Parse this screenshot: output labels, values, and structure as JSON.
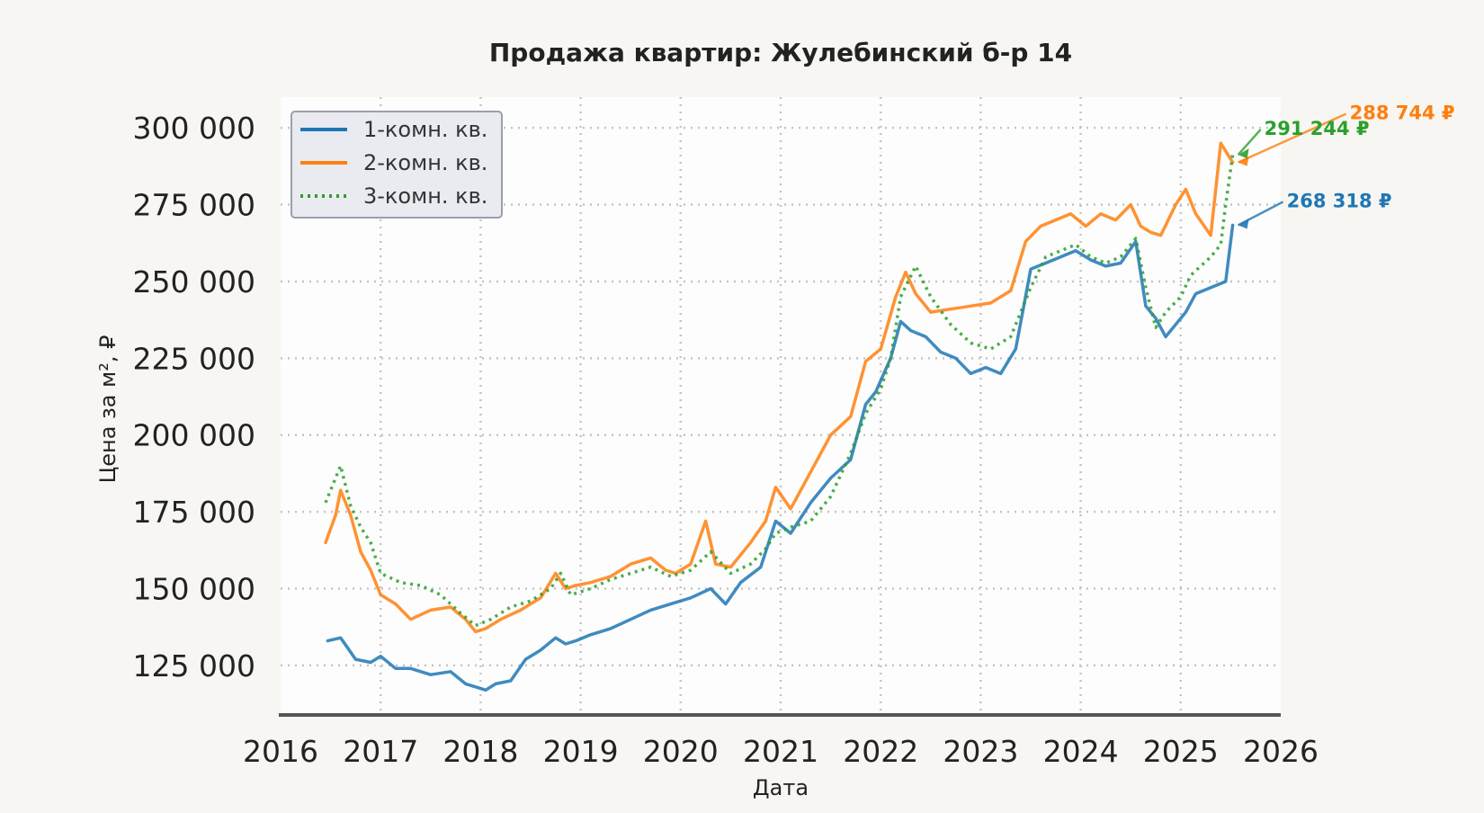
{
  "chart_data": {
    "type": "line",
    "title": "Продажа квартир: Жулебинский б-р 14",
    "xlabel": "Дата",
    "ylabel": "Цена за м², ₽",
    "xlim": [
      2016.0,
      2026.0
    ],
    "ylim": [
      108000,
      310000
    ],
    "x_ticks": [
      "2016",
      "2017",
      "2018",
      "2019",
      "2020",
      "2021",
      "2022",
      "2023",
      "2024",
      "2025",
      "2026"
    ],
    "y_ticks": [
      "125 000",
      "150 000",
      "175 000",
      "200 000",
      "225 000",
      "250 000",
      "275 000",
      "300 000"
    ],
    "grid": true,
    "legend_position": "top-left",
    "series": [
      {
        "name": "1-комн. кв.",
        "color": "#1f77b4",
        "style": "solid",
        "x": [
          2016.47,
          2016.6,
          2016.75,
          2016.9,
          2017.0,
          2017.15,
          2017.3,
          2017.5,
          2017.7,
          2017.85,
          2017.95,
          2018.05,
          2018.15,
          2018.3,
          2018.45,
          2018.6,
          2018.75,
          2018.85,
          2018.95,
          2019.1,
          2019.3,
          2019.5,
          2019.7,
          2019.9,
          2020.1,
          2020.3,
          2020.45,
          2020.6,
          2020.8,
          2020.95,
          2021.1,
          2021.3,
          2021.5,
          2021.7,
          2021.85,
          2021.95,
          2022.1,
          2022.2,
          2022.3,
          2022.45,
          2022.6,
          2022.75,
          2022.9,
          2023.05,
          2023.2,
          2023.35,
          2023.5,
          2023.65,
          2023.8,
          2023.95,
          2024.1,
          2024.25,
          2024.4,
          2024.55,
          2024.65,
          2024.75,
          2024.85,
          2024.95,
          2025.05,
          2025.15,
          2025.3,
          2025.45,
          2025.52
        ],
        "y": [
          133000,
          134000,
          127000,
          126000,
          128000,
          124000,
          124000,
          122000,
          123000,
          119000,
          118000,
          117000,
          119000,
          120000,
          127000,
          130000,
          134000,
          132000,
          133000,
          135000,
          137000,
          140000,
          143000,
          145000,
          147000,
          150000,
          145000,
          152000,
          157000,
          172000,
          168000,
          178000,
          186000,
          192000,
          210000,
          214000,
          225000,
          237000,
          234000,
          232000,
          227000,
          225000,
          220000,
          222000,
          220000,
          228000,
          254000,
          256000,
          258000,
          260000,
          257000,
          255000,
          256000,
          263000,
          242000,
          238000,
          232000,
          236000,
          240000,
          246000,
          248000,
          250000,
          268318
        ]
      },
      {
        "name": "2-комн. кв.",
        "color": "#ff7f0e",
        "style": "solid",
        "x": [
          2016.45,
          2016.55,
          2016.6,
          2016.7,
          2016.8,
          2016.9,
          2017.0,
          2017.15,
          2017.3,
          2017.5,
          2017.7,
          2017.85,
          2017.95,
          2018.05,
          2018.2,
          2018.4,
          2018.6,
          2018.75,
          2018.85,
          2018.95,
          2019.1,
          2019.3,
          2019.5,
          2019.7,
          2019.85,
          2019.95,
          2020.1,
          2020.25,
          2020.35,
          2020.5,
          2020.7,
          2020.85,
          2020.95,
          2021.1,
          2021.3,
          2021.5,
          2021.7,
          2021.85,
          2022.0,
          2022.15,
          2022.25,
          2022.35,
          2022.5,
          2022.7,
          2022.9,
          2023.1,
          2023.3,
          2023.45,
          2023.6,
          2023.75,
          2023.9,
          2024.05,
          2024.2,
          2024.35,
          2024.5,
          2024.6,
          2024.7,
          2024.8,
          2024.95,
          2025.05,
          2025.15,
          2025.3,
          2025.4,
          2025.52
        ],
        "y": [
          165000,
          174000,
          182000,
          174000,
          162000,
          156000,
          148000,
          145000,
          140000,
          143000,
          144000,
          140000,
          136000,
          137000,
          140000,
          143000,
          147000,
          155000,
          150000,
          151000,
          152000,
          154000,
          158000,
          160000,
          156000,
          155000,
          158000,
          172000,
          158000,
          157000,
          165000,
          172000,
          183000,
          176000,
          188000,
          200000,
          206000,
          224000,
          228000,
          245000,
          253000,
          246000,
          240000,
          241000,
          242000,
          243000,
          247000,
          263000,
          268000,
          270000,
          272000,
          268000,
          272000,
          270000,
          275000,
          268000,
          266000,
          265000,
          275000,
          280000,
          272000,
          265000,
          295000,
          288744
        ]
      },
      {
        "name": "3-комн. кв.",
        "color": "#2ca02c",
        "style": "dotted",
        "x": [
          2016.45,
          2016.6,
          2016.7,
          2016.8,
          2016.9,
          2017.0,
          2017.2,
          2017.4,
          2017.6,
          2017.8,
          2017.95,
          2018.1,
          2018.3,
          2018.5,
          2018.7,
          2018.8,
          2018.9,
          2019.1,
          2019.3,
          2019.5,
          2019.7,
          2019.9,
          2020.1,
          2020.3,
          2020.5,
          2020.7,
          2020.85,
          2020.95,
          2021.1,
          2021.3,
          2021.5,
          2021.7,
          2021.85,
          2022.0,
          2022.1,
          2022.2,
          2022.35,
          2022.5,
          2022.7,
          2022.9,
          2023.1,
          2023.3,
          2023.5,
          2023.65,
          2023.8,
          2023.95,
          2024.1,
          2024.25,
          2024.4,
          2024.55,
          2024.65,
          2024.75,
          2024.85,
          2025.0,
          2025.1,
          2025.2,
          2025.3,
          2025.4,
          2025.45,
          2025.52
        ],
        "y": [
          178000,
          190000,
          177000,
          170000,
          165000,
          155000,
          152000,
          151000,
          148000,
          142000,
          138000,
          140000,
          144000,
          146000,
          150000,
          155000,
          148000,
          150000,
          153000,
          155000,
          157000,
          154000,
          156000,
          162000,
          155000,
          158000,
          163000,
          168000,
          170000,
          172000,
          180000,
          194000,
          207000,
          215000,
          225000,
          245000,
          255000,
          245000,
          236000,
          230000,
          228000,
          232000,
          248000,
          258000,
          260000,
          262000,
          258000,
          256000,
          258000,
          264000,
          248000,
          235000,
          240000,
          245000,
          252000,
          255000,
          258000,
          262000,
          275000,
          291244
        ]
      }
    ],
    "annotations": [
      {
        "text": "288 744 ₽",
        "series": "2-комн. кв.",
        "color": "#ff7f0e",
        "x": 2025.52,
        "y": 288744
      },
      {
        "text": "291 244 ₽",
        "series": "3-комн. кв.",
        "color": "#2ca02c",
        "x": 2025.52,
        "y": 291244
      },
      {
        "text": "268 318 ₽",
        "series": "1-комн. кв.",
        "color": "#1f77b4",
        "x": 2025.52,
        "y": 268318
      }
    ]
  }
}
